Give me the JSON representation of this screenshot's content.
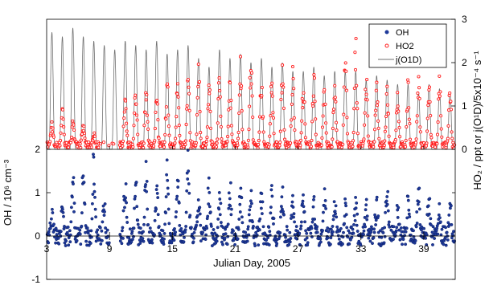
{
  "chart_data": {
    "type": "scatter",
    "xlabel": "Julian Day, 2005",
    "xlim": [
      3,
      42
    ],
    "x_ticks": [
      "3",
      "9",
      "15",
      "21",
      "27",
      "33",
      "39"
    ],
    "panels": [
      {
        "name": "top",
        "ylabel_right": "HO₂ / ppt or j(O¹D)/5x10⁻⁴ s⁻¹",
        "ylim": [
          0,
          3
        ],
        "y_ticks": [
          "0",
          "1",
          "2",
          "3"
        ],
        "series": [
          {
            "name": "HO2",
            "color": "#ff2020",
            "marker": "open-circle",
            "daily_peak": [
              0.4,
              0.7,
              0.5,
              0.4,
              0.2,
              0.0,
              0.0,
              0.9,
              1.2,
              1.3,
              1.0,
              1.3,
              1.5,
              1.4,
              1.5,
              1.2,
              1.4,
              1.3,
              1.7,
              1.8,
              1.5,
              1.4,
              1.6,
              1.5,
              1.3,
              1.4,
              1.3,
              1.2,
              1.9,
              2.0,
              1.4,
              1.2,
              1.2,
              1.1,
              1.2,
              1.3,
              1.2,
              1.3,
              1.1
            ],
            "night_level": 0.1
          },
          {
            "name": "j(O1D)",
            "color": "#707070",
            "marker": "line",
            "daily_peak": [
              2.7,
              2.6,
              2.8,
              2.6,
              2.5,
              2.4,
              2.3,
              2.5,
              2.4,
              2.3,
              2.5,
              2.2,
              2.3,
              2.4,
              2.1,
              1.9,
              2.3,
              2.1,
              2.2,
              2.0,
              2.1,
              1.9,
              2.0,
              1.8,
              1.8,
              1.9,
              1.7,
              1.8,
              1.8,
              1.8,
              1.6,
              1.7,
              1.6,
              1.5,
              1.5,
              1.3,
              1.5,
              1.4,
              1.3
            ]
          }
        ]
      },
      {
        "name": "bottom",
        "ylabel_left": "OH / 10⁶ cm⁻³",
        "ylim": [
          -1,
          2
        ],
        "y_ticks": [
          "-1",
          "0",
          "1",
          "2"
        ],
        "series": [
          {
            "name": "OH",
            "color": "#1f3a9a",
            "marker": "filled-circle",
            "daily_peak": [
              0.4,
              0.6,
              1.4,
              1.3,
              1.6,
              0.8,
              0.0,
              1.3,
              1.2,
              1.4,
              1.4,
              1.5,
              1.6,
              1.8,
              0.9,
              1.1,
              1.0,
              1.2,
              1.1,
              0.9,
              1.0,
              1.1,
              1.0,
              0.9,
              0.9,
              0.8,
              1.0,
              0.8,
              0.9,
              0.8,
              0.7,
              0.9,
              1.0,
              0.7,
              0.8,
              1.0,
              0.8,
              0.6,
              0.7
            ],
            "night_level": 0.0
          }
        ]
      }
    ],
    "legend": {
      "position": "top-right",
      "entries": [
        {
          "label": "OH",
          "symbol": "filled-circle",
          "color": "#1f3a9a"
        },
        {
          "label": "HO2",
          "symbol": "open-circle",
          "color": "#ff2020"
        },
        {
          "label": "j(O1D)",
          "symbol": "line",
          "color": "#707070"
        }
      ]
    },
    "grid": false
  }
}
